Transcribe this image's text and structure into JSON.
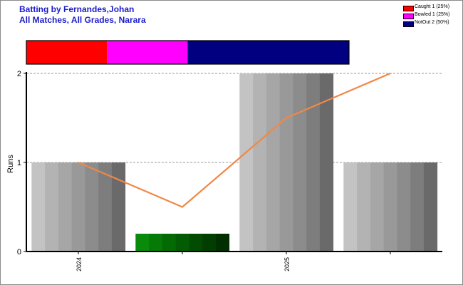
{
  "chart_data": {
    "type": "bar",
    "title": "Batting by Fernandes,Johan",
    "subtitle": "All Matches, All Grades, Narara",
    "ylabel": "Runs",
    "xlabel": "",
    "ylim": [
      0,
      2
    ],
    "yticks": [
      0,
      1,
      2
    ],
    "grid": true,
    "legend_position": "top-right",
    "x_tick_labels": [
      {
        "label": "2024",
        "at_bar": 0
      },
      {
        "label": "2025",
        "at_bar": 2
      }
    ],
    "bars": [
      {
        "value": 1,
        "color": "gray"
      },
      {
        "value": 0.2,
        "color": "green"
      },
      {
        "value": 2,
        "color": "gray"
      },
      {
        "value": 1,
        "color": "gray"
      }
    ],
    "line": {
      "name": "",
      "color": "#f08848",
      "values": [
        1,
        0.5,
        1.5,
        2
      ]
    },
    "dismissals": [
      {
        "label": "Caught 1 (25%)",
        "count": 1,
        "percent": 25,
        "color": "#ff0000"
      },
      {
        "label": "Bowled 1 (25%)",
        "count": 1,
        "percent": 25,
        "color": "#ff00ff"
      },
      {
        "label": "NotOut 2 (50%)",
        "count": 2,
        "percent": 50,
        "color": "#000080"
      }
    ]
  }
}
